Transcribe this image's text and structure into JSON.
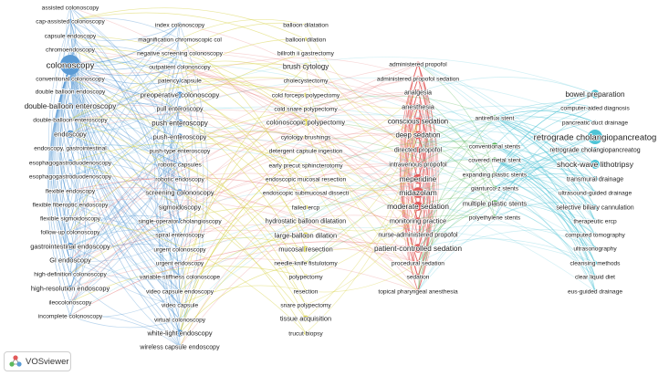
{
  "app_name": "VOSviewer",
  "colors": {
    "blue": "#5b9bd5",
    "yellow": "#d6cf3a",
    "red": "#e25a5a",
    "green": "#5cb85c",
    "cyan": "#4ec4d6"
  },
  "clusters": [
    {
      "color": "blue",
      "terms": [
        "assisted colonoscopy",
        "cap-assisted colonoscopy",
        "capsule endoscopy",
        "chromoendoscopy",
        "colonoscopy",
        "conventional colonoscopy",
        "double balloon endoscopy",
        "double-balloon enteroscopy",
        "double-balloon-enteroscopy",
        "endoscopy",
        "endoscopy, gastrointestinal",
        "esophagogastroduodenoscopy",
        "esophagogastroduodenoscopy",
        "flexible endoscopy",
        "flexible fiberoptic endoscopy",
        "flexible sigmoidoscopy",
        "follow-up colonoscopy",
        "gastrointestinal endoscopy",
        "GI endoscopy",
        "high-definition colonoscopy",
        "high-resolution endoscopy",
        "ileocolonoscopy",
        "incomplete colonoscopy",
        "index colonoscopy",
        "magnification chromoscopic col",
        "negative screening colonoscopy",
        "outpatient colonoscopy",
        "patency capsule",
        "preoperative colonoscopy",
        "pull enteroscopy",
        "push enteroscopy",
        "push-enteroscopy",
        "push-type enteroscopy",
        "robotic capsules",
        "robotic endoscopy",
        "screening colonoscopy",
        "sigmoidoscopy",
        "single-operator cholangioscopy",
        "spiral enteroscopy",
        "urgent colonoscopy",
        "urgent endoscopy",
        "variable-stiffness colonoscope",
        "video capsule endoscopy",
        "video capsule",
        "virtual colonoscopy",
        "white-light endoscopy",
        "wireless capsule endoscopy"
      ]
    },
    {
      "color": "yellow",
      "terms": [
        "balloon dilatation",
        "balloon dilation",
        "billroth ii gastrectomy",
        "brush cytology",
        "cholecystectomy",
        "cold forceps polypectomy",
        "cold snare polypectomy",
        "colonoscopic polypectomy",
        "cytology brushings",
        "detergent capsule ingestion",
        "early precut sphincterotomy",
        "endoscopic mucosal resection",
        "endoscopic submucosal dissecti",
        "failed ercp",
        "hydrostatic balloon dilatation",
        "large-balloon dilation",
        "mucosal resection",
        "needle-knife fistulotomy",
        "polypectomy",
        "resection",
        "snare polypectomy",
        "tissue acquisition",
        "trucut biopsy"
      ]
    },
    {
      "color": "red",
      "terms": [
        "administered propofol",
        "administered propofol sedation",
        "analgesia",
        "anesthesia",
        "conscious sedation",
        "deep sedation",
        "directed propofol",
        "intravenous propofol",
        "meperidine",
        "midazolam",
        "moderate sedation",
        "monitoring practice",
        "nurse-administered propofol",
        "patient-controlled sedation",
        "procedural sedation",
        "sedation",
        "topical pharyngeal anesthesia"
      ]
    },
    {
      "color": "green",
      "terms": [
        "antireflux stent",
        "conventional stents",
        "covered metal stent",
        "expanding plastic stents",
        "gianturco-z stents",
        "multiple plastic stents",
        "polyethylene stents"
      ]
    },
    {
      "color": "cyan",
      "terms": [
        "bowel preparation",
        "computer-aided diagnosis",
        "pancreatic duct drainage",
        "retrograde cholangiopancreatog",
        "retrograde cholangiopancreatog",
        "shock-wave lithotripsy",
        "transmural drainage",
        "ultrasound-guided drainage",
        "selective biliary cannulation",
        "therapeutic ercp",
        "computed tomography",
        "ultrasonography",
        "cleansing methods",
        "clear liquid diet",
        "eus-guided drainage"
      ]
    }
  ]
}
